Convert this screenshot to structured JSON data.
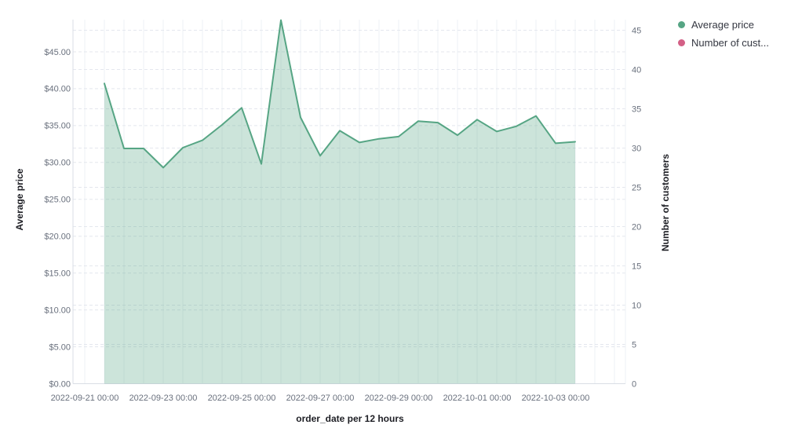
{
  "page": {
    "background": "#ffffff"
  },
  "legend": {
    "position": "top-right",
    "items": [
      {
        "label": "Average price",
        "color": "#56A584"
      },
      {
        "label": "Number of cust...",
        "color": "#D36086"
      }
    ]
  },
  "chart_data": {
    "type": "area",
    "title": "",
    "xlabel": "order_date per 12 hours",
    "x": [
      "2022-09-21 12:00",
      "2022-09-22 00:00",
      "2022-09-22 12:00",
      "2022-09-23 00:00",
      "2022-09-23 12:00",
      "2022-09-24 00:00",
      "2022-09-24 12:00",
      "2022-09-25 00:00",
      "2022-09-25 12:00",
      "2022-09-26 00:00",
      "2022-09-26 12:00",
      "2022-09-27 00:00",
      "2022-09-27 12:00",
      "2022-09-28 00:00",
      "2022-09-28 12:00",
      "2022-09-29 00:00",
      "2022-09-29 12:00",
      "2022-09-30 00:00",
      "2022-09-30 12:00",
      "2022-10-01 00:00",
      "2022-10-01 12:00",
      "2022-10-02 00:00",
      "2022-10-02 12:00",
      "2022-10-03 00:00",
      "2022-10-03 12:00"
    ],
    "series": [
      {
        "name": "Average price",
        "axis": "left",
        "color": "#56A584",
        "fill": "rgba(86,165,132,0.3)",
        "values": [
          40.7,
          31.9,
          31.9,
          29.3,
          32.0,
          33.0,
          35.1,
          37.4,
          29.8,
          49.3,
          36.1,
          30.9,
          34.3,
          32.7,
          33.2,
          33.5,
          35.6,
          35.4,
          33.7,
          35.8,
          34.2,
          34.9,
          36.3,
          32.6,
          32.8
        ]
      },
      {
        "name": "Number of customers",
        "axis": "right",
        "color": "#D36086",
        "values": []
      }
    ],
    "left_axis": {
      "title": "Average price",
      "ticks": [
        "$0.00",
        "$5.00",
        "$10.00",
        "$15.00",
        "$20.00",
        "$25.00",
        "$30.00",
        "$35.00",
        "$40.00",
        "$45.00"
      ],
      "tick_values": [
        0,
        5,
        10,
        15,
        20,
        25,
        30,
        35,
        40,
        45
      ],
      "min": 0,
      "max": 49.36
    },
    "right_axis": {
      "title": "Number of customers",
      "ticks": [
        "0",
        "5",
        "10",
        "15",
        "20",
        "25",
        "30",
        "35",
        "40",
        "45"
      ],
      "tick_values": [
        0,
        5,
        10,
        15,
        20,
        25,
        30,
        35,
        40,
        45
      ],
      "min": 0,
      "max": 46.35
    },
    "x_axis": {
      "title": "order_date per 12 hours",
      "ticks": [
        "2022-09-21 00:00",
        "2022-09-23 00:00",
        "2022-09-25 00:00",
        "2022-09-27 00:00",
        "2022-09-29 00:00",
        "2022-10-01 00:00",
        "2022-10-03 00:00"
      ]
    },
    "grid": {
      "horizontal": "dashed",
      "vertical": "solid"
    },
    "style": {
      "grid_horizontal": "#E4E7EE",
      "grid_vertical": "#EEF1F4",
      "axis_line": "#D9DDE5",
      "tick_text": "#69707D",
      "title_text": "#1D1E24",
      "legend_text": "#343741"
    },
    "legend_position": "top-right"
  }
}
